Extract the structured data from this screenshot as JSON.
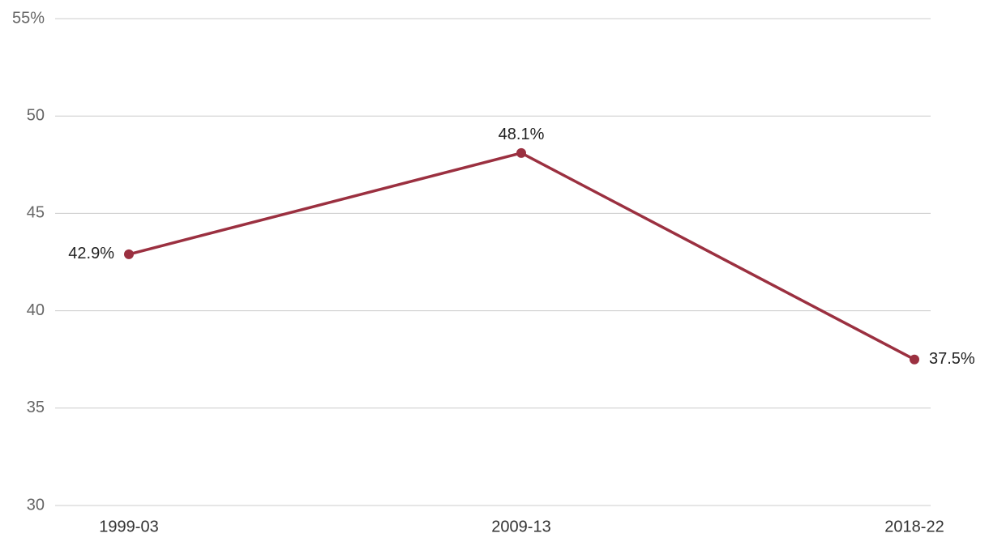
{
  "chart_data": {
    "type": "line",
    "categories": [
      "1999-03",
      "2009-13",
      "2018-22"
    ],
    "series": [
      {
        "color": "#9b3040",
        "values": [
          42.9,
          48.1,
          37.5
        ],
        "value_labels": [
          "42.9%",
          "48.1%",
          "37.5%"
        ]
      }
    ],
    "ylim": [
      30,
      55
    ],
    "yticks": [
      30,
      35,
      40,
      45,
      50,
      {
        "value": 55,
        "label": "55%"
      }
    ],
    "grid": true
  }
}
